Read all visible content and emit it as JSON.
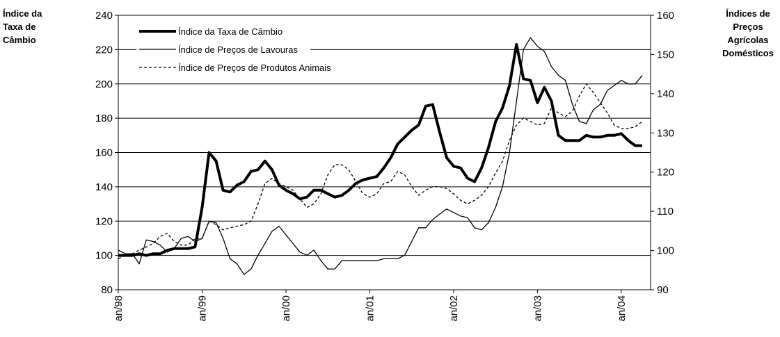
{
  "chart_data": {
    "type": "line",
    "ylabel": [
      "Índice da",
      "Taxa de",
      "Câmbio"
    ],
    "y2label": [
      "Índices de",
      "Preços",
      "Agrícolas",
      "Domésticos"
    ],
    "categories": [
      "an/98",
      null,
      null,
      null,
      null,
      null,
      null,
      null,
      null,
      null,
      null,
      null,
      "an/99",
      null,
      null,
      null,
      null,
      null,
      null,
      null,
      null,
      null,
      null,
      null,
      "an/00",
      null,
      null,
      null,
      null,
      null,
      null,
      null,
      null,
      null,
      null,
      null,
      "an/01",
      null,
      null,
      null,
      null,
      null,
      null,
      null,
      null,
      null,
      null,
      null,
      "an/02",
      null,
      null,
      null,
      null,
      null,
      null,
      null,
      null,
      null,
      null,
      null,
      "an/03",
      null,
      null,
      null,
      null,
      null,
      null,
      null,
      null,
      null,
      null,
      null,
      "an/04",
      null,
      null,
      null
    ],
    "ylim": [
      80,
      240
    ],
    "yticks": [
      80,
      100,
      120,
      140,
      160,
      180,
      200,
      220,
      240
    ],
    "y2lim": [
      90,
      160
    ],
    "y2ticks": [
      90,
      100,
      110,
      120,
      130,
      140,
      150,
      160
    ],
    "grid": true,
    "series": [
      {
        "name": "Índice da Taxa de Câmbio",
        "color": "#000000",
        "width": 4,
        "dash": "none",
        "axis": "y",
        "values": [
          100,
          100,
          100,
          101,
          100,
          101,
          101,
          103,
          104,
          104,
          104,
          105,
          128,
          160,
          155,
          138,
          137,
          141,
          143,
          149,
          150,
          155,
          150,
          141,
          138,
          136,
          133,
          134,
          138,
          138,
          136,
          134,
          135,
          138,
          142,
          144,
          145,
          146,
          151,
          157,
          165,
          169,
          173,
          176,
          187,
          188,
          172,
          157,
          152,
          151,
          145,
          143,
          151,
          163,
          178,
          186,
          199,
          223,
          203,
          202,
          189,
          198,
          190,
          170,
          167,
          167,
          167,
          170,
          169,
          169,
          170,
          170,
          171,
          167,
          164,
          164
        ]
      },
      {
        "name": "Índice de Preços  de Lavouras",
        "color": "#000000",
        "width": 1.3,
        "dash": "none",
        "axis": "y2",
        "values": [
          100.1,
          99.2,
          99.2,
          96.6,
          102.7,
          102.3,
          101.4,
          99.6,
          100.5,
          103.1,
          103.6,
          102.3,
          103.1,
          107.5,
          107.1,
          103.1,
          97.9,
          96.6,
          93.9,
          95.3,
          98.8,
          101.8,
          104.9,
          106.2,
          104,
          101.8,
          99.6,
          98.8,
          100.1,
          97.4,
          95.3,
          95.3,
          97.4,
          97.4,
          97.4,
          97.4,
          97.4,
          97.4,
          97.9,
          97.9,
          97.9,
          98.8,
          102.3,
          105.8,
          105.8,
          107.9,
          109.3,
          110.6,
          109.7,
          108.8,
          108.4,
          105.8,
          105.3,
          107.1,
          111,
          116.3,
          125,
          138.1,
          151.3,
          154.3,
          152.1,
          150.8,
          146.9,
          144.7,
          143.4,
          137.3,
          132.9,
          132.4,
          135.9,
          137.3,
          140.8,
          142.1,
          143.4,
          142.5,
          142.5,
          144.7
        ]
      },
      {
        "name": "Índice de Preços de Produtos Animais",
        "color": "#000000",
        "width": 1.3,
        "dash": "4 3",
        "axis": "y2",
        "values": [
          97.9,
          98.8,
          99.2,
          100.1,
          100.9,
          101.8,
          103.6,
          104.4,
          102.3,
          101.4,
          101.4,
          103.1,
          103.1,
          107.5,
          106.6,
          105.3,
          105.8,
          106.2,
          106.6,
          107.5,
          111.9,
          117.1,
          118.4,
          117.1,
          116.3,
          115.4,
          113.2,
          111,
          111.9,
          114.5,
          119.3,
          121.9,
          121.9,
          120.6,
          117.6,
          114.5,
          113.6,
          114.5,
          117.1,
          117.6,
          120.2,
          119.3,
          116.3,
          114.1,
          115.4,
          116.3,
          116.3,
          115.8,
          114.5,
          112.8,
          111.9,
          112.8,
          114.1,
          116.3,
          119.8,
          122.8,
          128.1,
          132,
          133.8,
          132.9,
          132,
          132.4,
          136.4,
          135.1,
          134.2,
          135.5,
          139.4,
          142.5,
          140.3,
          137.7,
          135.1,
          132,
          131.1,
          131.1,
          131.6,
          132.9
        ]
      }
    ]
  }
}
